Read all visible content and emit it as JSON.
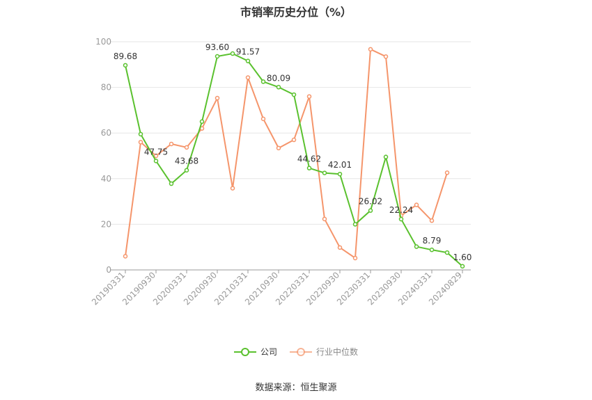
{
  "title": "市销率历史分位（%）",
  "source": "数据来源：恒生聚源",
  "legend": [
    {
      "label": "公司",
      "color": "#5ac12e"
    },
    {
      "label": "行业中位数",
      "color": "#f5956b"
    }
  ],
  "chart_data": {
    "type": "line",
    "title": "市销率历史分位（%）",
    "ylim": [
      0,
      100
    ],
    "yticks": [
      0,
      20,
      40,
      60,
      80,
      100
    ],
    "grid": true,
    "legend_position": "bottom",
    "x": [
      "20190331",
      "20190630",
      "20190930",
      "20191231",
      "20200331",
      "20200630",
      "20200930",
      "20201231",
      "20210331",
      "20210630",
      "20210930",
      "20211231",
      "20220331",
      "20220630",
      "20220930",
      "20221231",
      "20230331",
      "20230630",
      "20230930",
      "20231231",
      "20240331",
      "20240630",
      "20240829"
    ],
    "xtick_labels": [
      "20190331",
      "20190930",
      "20200331",
      "20200930",
      "20210331",
      "20210930",
      "20220331",
      "20220930",
      "20230331",
      "20230930",
      "20240331",
      "20240829"
    ],
    "series": [
      {
        "name": "公司",
        "color": "#5ac12e",
        "values": [
          89.68,
          59.5,
          47.75,
          37.8,
          43.68,
          65.0,
          93.6,
          94.8,
          91.57,
          82.5,
          80.09,
          76.8,
          44.62,
          42.5,
          42.01,
          20.0,
          26.02,
          49.5,
          22.24,
          10.2,
          8.79,
          7.6,
          1.6
        ],
        "labels": [
          "89.68",
          "",
          "47.75",
          "",
          "43.68",
          "",
          "93.60",
          "",
          "91.57",
          "",
          "80.09",
          "",
          "44.62",
          "",
          "42.01",
          "",
          "26.02",
          "",
          "22.24",
          "",
          "8.79",
          "",
          "1.60"
        ]
      },
      {
        "name": "行业中位数",
        "color": "#f5956b",
        "values": [
          6.0,
          56.0,
          50.0,
          55.2,
          53.7,
          62.0,
          75.3,
          35.8,
          84.3,
          66.2,
          53.4,
          57.0,
          76.0,
          22.3,
          9.8,
          5.2,
          96.7,
          93.5,
          23.8,
          28.5,
          21.6,
          42.6,
          null
        ]
      }
    ]
  }
}
